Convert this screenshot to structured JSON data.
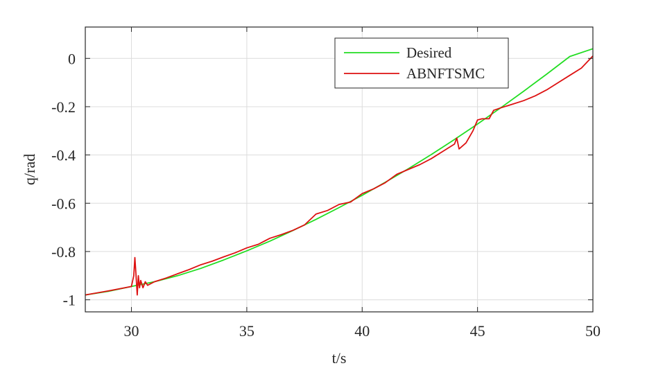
{
  "chart_data": {
    "type": "line",
    "xlabel": "t/s",
    "ylabel": "q/rad",
    "xlim": [
      28,
      50
    ],
    "ylim": [
      -1.05,
      0.13
    ],
    "xticks": [
      30,
      35,
      40,
      45,
      50
    ],
    "xtick_labels": [
      "30",
      "35",
      "40",
      "45",
      "50"
    ],
    "yticks": [
      0,
      -0.2,
      -0.4,
      -0.6,
      -0.8,
      -1
    ],
    "ytick_labels": [
      "0",
      "-0.2",
      "-0.4",
      "-0.6",
      "-0.8",
      "-1"
    ],
    "grid": true,
    "legend_position": "top-right",
    "series": [
      {
        "name": "Desired",
        "color": "#22dd22",
        "x": [
          28,
          29,
          30,
          31,
          32,
          33,
          34,
          35,
          36,
          37,
          38,
          39,
          40,
          41,
          42,
          43,
          44,
          45,
          46,
          47,
          48,
          49,
          50
        ],
        "y": [
          -0.98,
          -0.965,
          -0.945,
          -0.925,
          -0.9,
          -0.87,
          -0.835,
          -0.797,
          -0.757,
          -0.713,
          -0.667,
          -0.618,
          -0.567,
          -0.513,
          -0.457,
          -0.398,
          -0.336,
          -0.272,
          -0.205,
          -0.136,
          -0.065,
          0.008,
          0.04
        ]
      },
      {
        "name": "ABNFTSMC",
        "color": "#dd1111",
        "x": [
          28,
          29,
          30,
          30.1,
          30.15,
          30.2,
          30.25,
          30.3,
          30.35,
          30.4,
          30.5,
          30.6,
          30.7,
          31,
          31.5,
          32,
          32.5,
          33,
          33.5,
          34,
          34.5,
          35,
          35.5,
          36,
          36.5,
          37,
          37.5,
          38,
          38.5,
          39,
          39.5,
          40,
          40.5,
          41,
          41.5,
          42,
          42.5,
          43,
          43.5,
          44,
          44.1,
          44.2,
          44.5,
          44.8,
          45,
          45.2,
          45.5,
          45.7,
          46,
          46.5,
          47,
          47.5,
          48,
          48.5,
          49,
          49.5,
          50
        ],
        "y": [
          -0.98,
          -0.963,
          -0.945,
          -0.9,
          -0.825,
          -0.9,
          -0.98,
          -0.9,
          -0.95,
          -0.92,
          -0.95,
          -0.925,
          -0.94,
          -0.925,
          -0.91,
          -0.892,
          -0.875,
          -0.855,
          -0.84,
          -0.822,
          -0.805,
          -0.785,
          -0.77,
          -0.745,
          -0.73,
          -0.712,
          -0.69,
          -0.645,
          -0.63,
          -0.605,
          -0.595,
          -0.56,
          -0.54,
          -0.515,
          -0.48,
          -0.46,
          -0.44,
          -0.415,
          -0.385,
          -0.355,
          -0.33,
          -0.375,
          -0.35,
          -0.3,
          -0.255,
          -0.25,
          -0.25,
          -0.215,
          -0.205,
          -0.19,
          -0.175,
          -0.155,
          -0.13,
          -0.1,
          -0.07,
          -0.04,
          0.01
        ]
      }
    ]
  }
}
